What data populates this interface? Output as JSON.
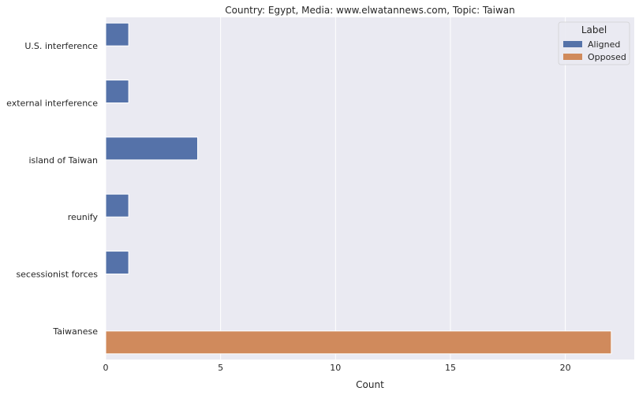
{
  "chart_data": {
    "type": "bar",
    "orientation": "horizontal",
    "title": "Country: Egypt, Media: www.elwatannews.com, Topic: Taiwan",
    "xlabel": "Count",
    "ylabel": "",
    "xlim": [
      0,
      23
    ],
    "xticks": [
      0,
      5,
      10,
      15,
      20
    ],
    "grid": true,
    "categories": [
      "U.S. interference",
      "external interference",
      "island of Taiwan",
      "reunify",
      "secessionist forces",
      "Taiwanese"
    ],
    "series": [
      {
        "name": "Aligned",
        "color": "#5572a9",
        "values": [
          1,
          1,
          4,
          1,
          1,
          0
        ]
      },
      {
        "name": "Opposed",
        "color": "#d08a5c",
        "values": [
          0,
          0,
          0,
          0,
          0,
          22
        ]
      }
    ],
    "legend": {
      "title": "Label",
      "position": "top-right"
    }
  }
}
